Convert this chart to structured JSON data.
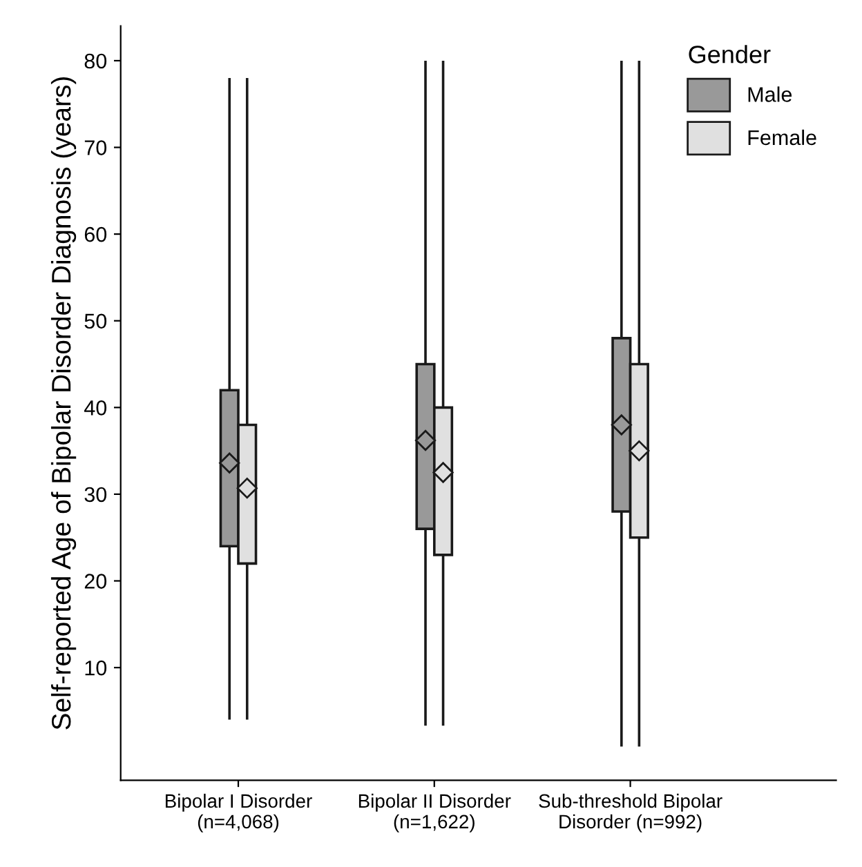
{
  "chart_data": {
    "type": "box",
    "categories": [
      "Bipolar I Disorder\n(n=4,068)",
      "Bipolar II Disorder\n(n=1,622)",
      "Sub-threshold Bipolar\nDisorder (n=992)"
    ],
    "ylabel": "Self-reported Age of Bipolar Disorder Diagnosis (years)",
    "legend_title": "Gender",
    "legend": "top right",
    "grid": false,
    "marker": "diamond",
    "ylim": [
      -3,
      84
    ],
    "yticks": [
      10,
      20,
      30,
      40,
      50,
      60,
      70,
      80
    ],
    "series": [
      {
        "name": "Male",
        "color": "#999999",
        "boxes": [
          {
            "low": 4,
            "q1": 24,
            "q3": 42,
            "high": 78,
            "mean": 33.6
          },
          {
            "low": 3.3,
            "q1": 26,
            "q3": 45,
            "high": 80,
            "mean": 36.2
          },
          {
            "low": 0.9,
            "q1": 28,
            "q3": 48,
            "high": 80,
            "mean": 38
          }
        ]
      },
      {
        "name": "Female",
        "color": "#e0e0e0",
        "boxes": [
          {
            "low": 4,
            "q1": 22,
            "q3": 38,
            "high": 78,
            "mean": 30.7
          },
          {
            "low": 3.3,
            "q1": 23,
            "q3": 40,
            "high": 80,
            "mean": 32.5
          },
          {
            "low": 0.9,
            "q1": 25,
            "q3": 45,
            "high": 80,
            "mean": 35
          }
        ]
      }
    ]
  }
}
